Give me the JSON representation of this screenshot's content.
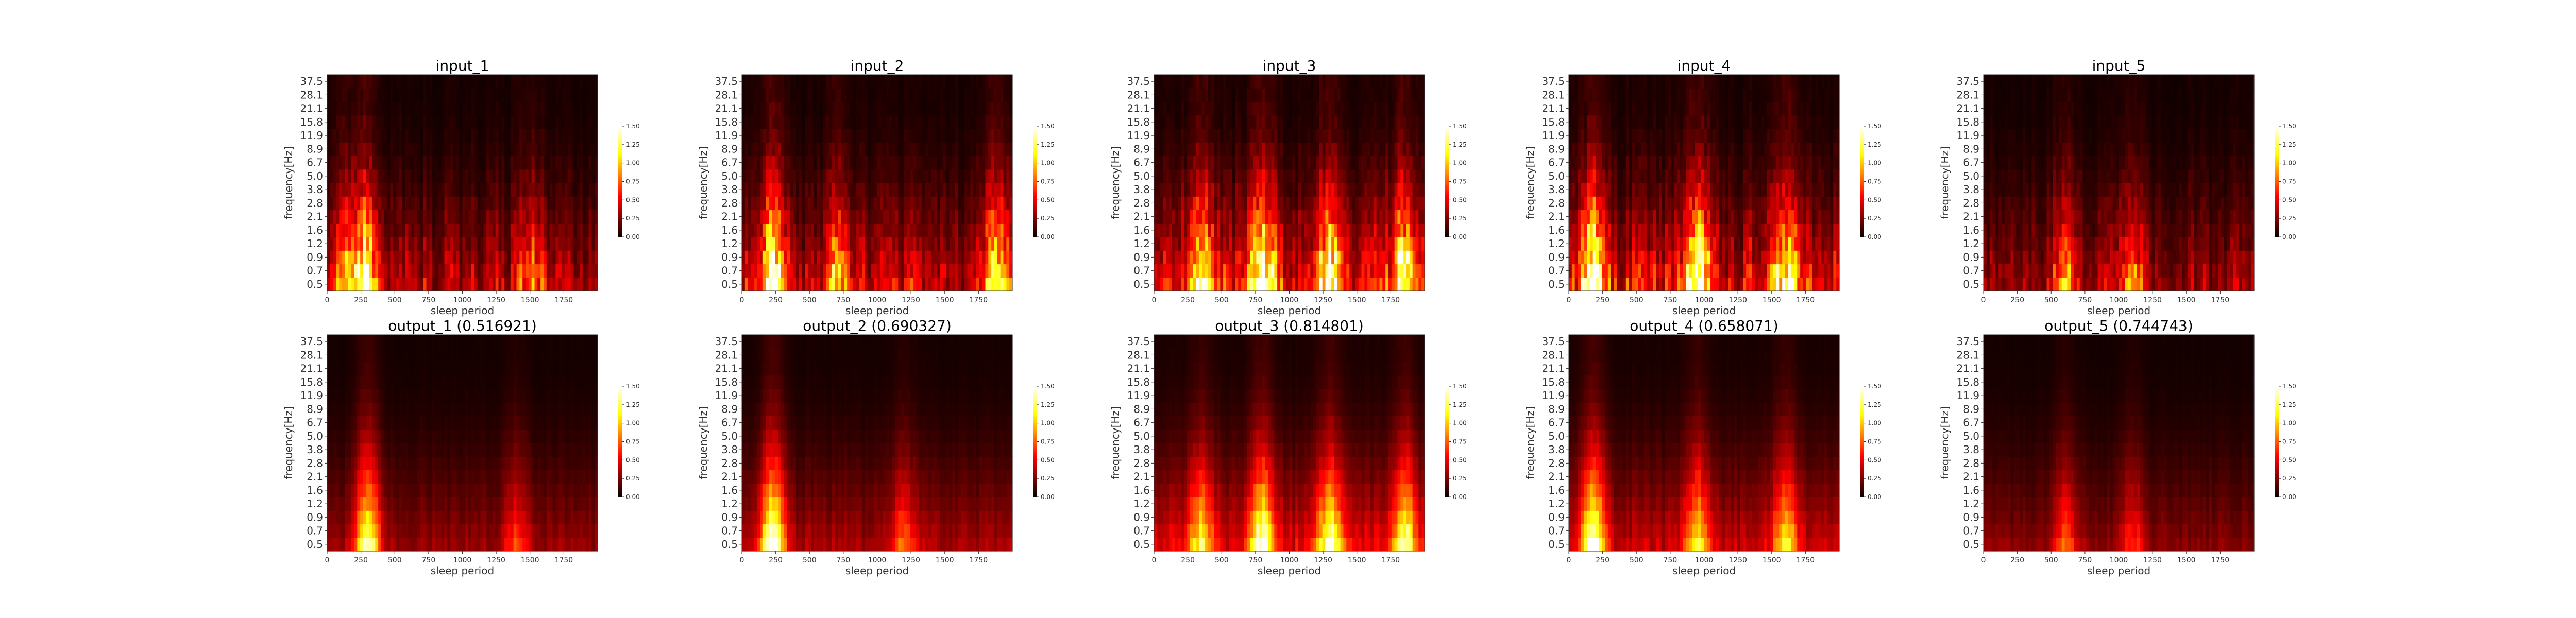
{
  "chart_data": [
    {
      "type": "heatmap",
      "title": "input_1",
      "xlabel": "sleep period",
      "ylabel": "frequency[Hz]",
      "xticks": [
        "0",
        "250",
        "500",
        "750",
        "1000",
        "1250",
        "1500",
        "1750"
      ],
      "yticks": [
        "0.5",
        "0.7",
        "0.9",
        "1.2",
        "1.6",
        "2.1",
        "2.8",
        "3.8",
        "5.0",
        "6.7",
        "8.9",
        "11.9",
        "15.8",
        "21.1",
        "28.1",
        "37.5"
      ],
      "xlim": [
        0,
        2000
      ],
      "colorbar": {
        "ticks": [
          "0.00",
          "0.25",
          "0.50",
          "0.75",
          "1.00",
          "1.25",
          "1.50"
        ],
        "range": [
          0,
          1.5
        ]
      },
      "hot_spots": [
        {
          "x": 280,
          "intensity": 0.9
        },
        {
          "x": 150,
          "intensity": 0.6
        },
        {
          "x": 1500,
          "intensity": 0.4
        }
      ],
      "overall_intensity": 0.5,
      "colormap": "hot"
    },
    {
      "type": "heatmap",
      "title": "input_2",
      "xlabel": "sleep period",
      "ylabel": "frequency[Hz]",
      "xticks": [
        "0",
        "250",
        "500",
        "750",
        "1000",
        "1250",
        "1500",
        "1750"
      ],
      "yticks": [
        "0.5",
        "0.7",
        "0.9",
        "1.2",
        "1.6",
        "2.1",
        "2.8",
        "3.8",
        "5.0",
        "6.7",
        "8.9",
        "11.9",
        "15.8",
        "21.1",
        "28.1",
        "37.5"
      ],
      "xlim": [
        0,
        2000
      ],
      "colorbar": {
        "ticks": [
          "0.00",
          "0.25",
          "0.50",
          "0.75",
          "1.00",
          "1.25",
          "1.50"
        ],
        "range": [
          0,
          1.5
        ]
      },
      "hot_spots": [
        {
          "x": 230,
          "intensity": 1.0
        },
        {
          "x": 1880,
          "intensity": 0.8
        },
        {
          "x": 700,
          "intensity": 0.5
        }
      ],
      "overall_intensity": 0.55,
      "colormap": "hot"
    },
    {
      "type": "heatmap",
      "title": "input_3",
      "xlabel": "sleep period",
      "ylabel": "frequency[Hz]",
      "xticks": [
        "0",
        "250",
        "500",
        "750",
        "1000",
        "1250",
        "1500",
        "1750"
      ],
      "yticks": [
        "0.5",
        "0.7",
        "0.9",
        "1.2",
        "1.6",
        "2.1",
        "2.8",
        "3.8",
        "5.0",
        "6.7",
        "8.9",
        "11.9",
        "15.8",
        "21.1",
        "28.1",
        "37.5"
      ],
      "xlim": [
        0,
        2000
      ],
      "colorbar": {
        "ticks": [
          "0.00",
          "0.25",
          "0.50",
          "0.75",
          "1.00",
          "1.25",
          "1.50"
        ],
        "range": [
          0,
          1.5
        ]
      },
      "hot_spots": [
        {
          "x": 800,
          "intensity": 0.9
        },
        {
          "x": 1300,
          "intensity": 0.8
        },
        {
          "x": 350,
          "intensity": 0.7
        },
        {
          "x": 1850,
          "intensity": 0.7
        }
      ],
      "overall_intensity": 0.75,
      "colormap": "hot"
    },
    {
      "type": "heatmap",
      "title": "input_4",
      "xlabel": "sleep period",
      "ylabel": "frequency[Hz]",
      "xticks": [
        "0",
        "250",
        "500",
        "750",
        "1000",
        "1250",
        "1500",
        "1750"
      ],
      "yticks": [
        "0.5",
        "0.7",
        "0.9",
        "1.2",
        "1.6",
        "2.1",
        "2.8",
        "3.8",
        "5.0",
        "6.7",
        "8.9",
        "11.9",
        "15.8",
        "21.1",
        "28.1",
        "37.5"
      ],
      "xlim": [
        0,
        2000
      ],
      "colorbar": {
        "ticks": [
          "0.00",
          "0.25",
          "0.50",
          "0.75",
          "1.00",
          "1.25",
          "1.50"
        ],
        "range": [
          0,
          1.5
        ]
      },
      "hot_spots": [
        {
          "x": 180,
          "intensity": 0.9
        },
        {
          "x": 950,
          "intensity": 0.8
        },
        {
          "x": 1600,
          "intensity": 0.7
        }
      ],
      "overall_intensity": 0.7,
      "colormap": "hot"
    },
    {
      "type": "heatmap",
      "title": "input_5",
      "xlabel": "sleep period",
      "ylabel": "frequency[Hz]",
      "xticks": [
        "0",
        "250",
        "500",
        "750",
        "1000",
        "1250",
        "1500",
        "1750"
      ],
      "yticks": [
        "0.5",
        "0.7",
        "0.9",
        "1.2",
        "1.6",
        "2.1",
        "2.8",
        "3.8",
        "5.0",
        "6.7",
        "8.9",
        "11.9",
        "15.8",
        "21.1",
        "28.1",
        "37.5"
      ],
      "xlim": [
        0,
        2000
      ],
      "colorbar": {
        "ticks": [
          "0.00",
          "0.25",
          "0.50",
          "0.75",
          "1.00",
          "1.25",
          "1.50"
        ],
        "range": [
          0,
          1.5
        ]
      },
      "hot_spots": [
        {
          "x": 600,
          "intensity": 0.5
        },
        {
          "x": 1100,
          "intensity": 0.4
        }
      ],
      "overall_intensity": 0.4,
      "colormap": "hot"
    },
    {
      "type": "heatmap",
      "title": "output_1 (0.516921)",
      "xlabel": "sleep period",
      "ylabel": "frequency[Hz]",
      "xticks": [
        "0",
        "250",
        "500",
        "750",
        "1000",
        "1250",
        "1500",
        "1750"
      ],
      "yticks": [
        "0.5",
        "0.7",
        "0.9",
        "1.2",
        "1.6",
        "2.1",
        "2.8",
        "3.8",
        "5.0",
        "6.7",
        "8.9",
        "11.9",
        "15.8",
        "21.1",
        "28.1",
        "37.5"
      ],
      "xlim": [
        0,
        2000
      ],
      "colorbar": {
        "ticks": [
          "0.00",
          "0.25",
          "0.50",
          "0.75",
          "1.00",
          "1.25",
          "1.50"
        ],
        "range": [
          0,
          1.5
        ]
      },
      "hot_spots": [
        {
          "x": 300,
          "intensity": 0.85
        },
        {
          "x": 1400,
          "intensity": 0.3
        }
      ],
      "overall_intensity": 0.35,
      "colormap": "hot"
    },
    {
      "type": "heatmap",
      "title": "output_2 (0.690327)",
      "xlabel": "sleep period",
      "ylabel": "frequency[Hz]",
      "xticks": [
        "0",
        "250",
        "500",
        "750",
        "1000",
        "1250",
        "1500",
        "1750"
      ],
      "yticks": [
        "0.5",
        "0.7",
        "0.9",
        "1.2",
        "1.6",
        "2.1",
        "2.8",
        "3.8",
        "5.0",
        "6.7",
        "8.9",
        "11.9",
        "15.8",
        "21.1",
        "28.1",
        "37.5"
      ],
      "xlim": [
        0,
        2000
      ],
      "colorbar": {
        "ticks": [
          "0.00",
          "0.25",
          "0.50",
          "0.75",
          "1.00",
          "1.25",
          "1.50"
        ],
        "range": [
          0,
          1.5
        ]
      },
      "hot_spots": [
        {
          "x": 230,
          "intensity": 0.95
        },
        {
          "x": 1200,
          "intensity": 0.35
        }
      ],
      "overall_intensity": 0.4,
      "colormap": "hot"
    },
    {
      "type": "heatmap",
      "title": "output_3 (0.814801)",
      "xlabel": "sleep period",
      "ylabel": "frequency[Hz]",
      "xticks": [
        "0",
        "250",
        "500",
        "750",
        "1000",
        "1250",
        "1500",
        "1750"
      ],
      "yticks": [
        "0.5",
        "0.7",
        "0.9",
        "1.2",
        "1.6",
        "2.1",
        "2.8",
        "3.8",
        "5.0",
        "6.7",
        "8.9",
        "11.9",
        "15.8",
        "21.1",
        "28.1",
        "37.5"
      ],
      "xlim": [
        0,
        2000
      ],
      "colorbar": {
        "ticks": [
          "0.00",
          "0.25",
          "0.50",
          "0.75",
          "1.00",
          "1.25",
          "1.50"
        ],
        "range": [
          0,
          1.5
        ]
      },
      "hot_spots": [
        {
          "x": 800,
          "intensity": 0.8
        },
        {
          "x": 1300,
          "intensity": 0.75
        },
        {
          "x": 1850,
          "intensity": 0.7
        },
        {
          "x": 350,
          "intensity": 0.6
        }
      ],
      "overall_intensity": 0.6,
      "colormap": "hot"
    },
    {
      "type": "heatmap",
      "title": "output_4 (0.658071)",
      "xlabel": "sleep period",
      "ylabel": "frequency[Hz]",
      "xticks": [
        "0",
        "250",
        "500",
        "750",
        "1000",
        "1250",
        "1500",
        "1750"
      ],
      "yticks": [
        "0.5",
        "0.7",
        "0.9",
        "1.2",
        "1.6",
        "2.1",
        "2.8",
        "3.8",
        "5.0",
        "6.7",
        "8.9",
        "11.9",
        "15.8",
        "21.1",
        "28.1",
        "37.5"
      ],
      "xlim": [
        0,
        2000
      ],
      "colorbar": {
        "ticks": [
          "0.00",
          "0.25",
          "0.50",
          "0.75",
          "1.00",
          "1.25",
          "1.50"
        ],
        "range": [
          0,
          1.5
        ]
      },
      "hot_spots": [
        {
          "x": 180,
          "intensity": 0.9
        },
        {
          "x": 950,
          "intensity": 0.6
        },
        {
          "x": 1600,
          "intensity": 0.55
        }
      ],
      "overall_intensity": 0.5,
      "colormap": "hot"
    },
    {
      "type": "heatmap",
      "title": "output_5 (0.744743)",
      "xlabel": "sleep period",
      "ylabel": "frequency[Hz]",
      "xticks": [
        "0",
        "250",
        "500",
        "750",
        "1000",
        "1250",
        "1500",
        "1750"
      ],
      "yticks": [
        "0.5",
        "0.7",
        "0.9",
        "1.2",
        "1.6",
        "2.1",
        "2.8",
        "3.8",
        "5.0",
        "6.7",
        "8.9",
        "11.9",
        "15.8",
        "21.1",
        "28.1",
        "37.5"
      ],
      "xlim": [
        0,
        2000
      ],
      "colorbar": {
        "ticks": [
          "0.00",
          "0.25",
          "0.50",
          "0.75",
          "1.00",
          "1.25",
          "1.50"
        ],
        "range": [
          0,
          1.5
        ]
      },
      "hot_spots": [
        {
          "x": 600,
          "intensity": 0.35
        },
        {
          "x": 1100,
          "intensity": 0.3
        }
      ],
      "overall_intensity": 0.3,
      "colormap": "hot"
    }
  ]
}
